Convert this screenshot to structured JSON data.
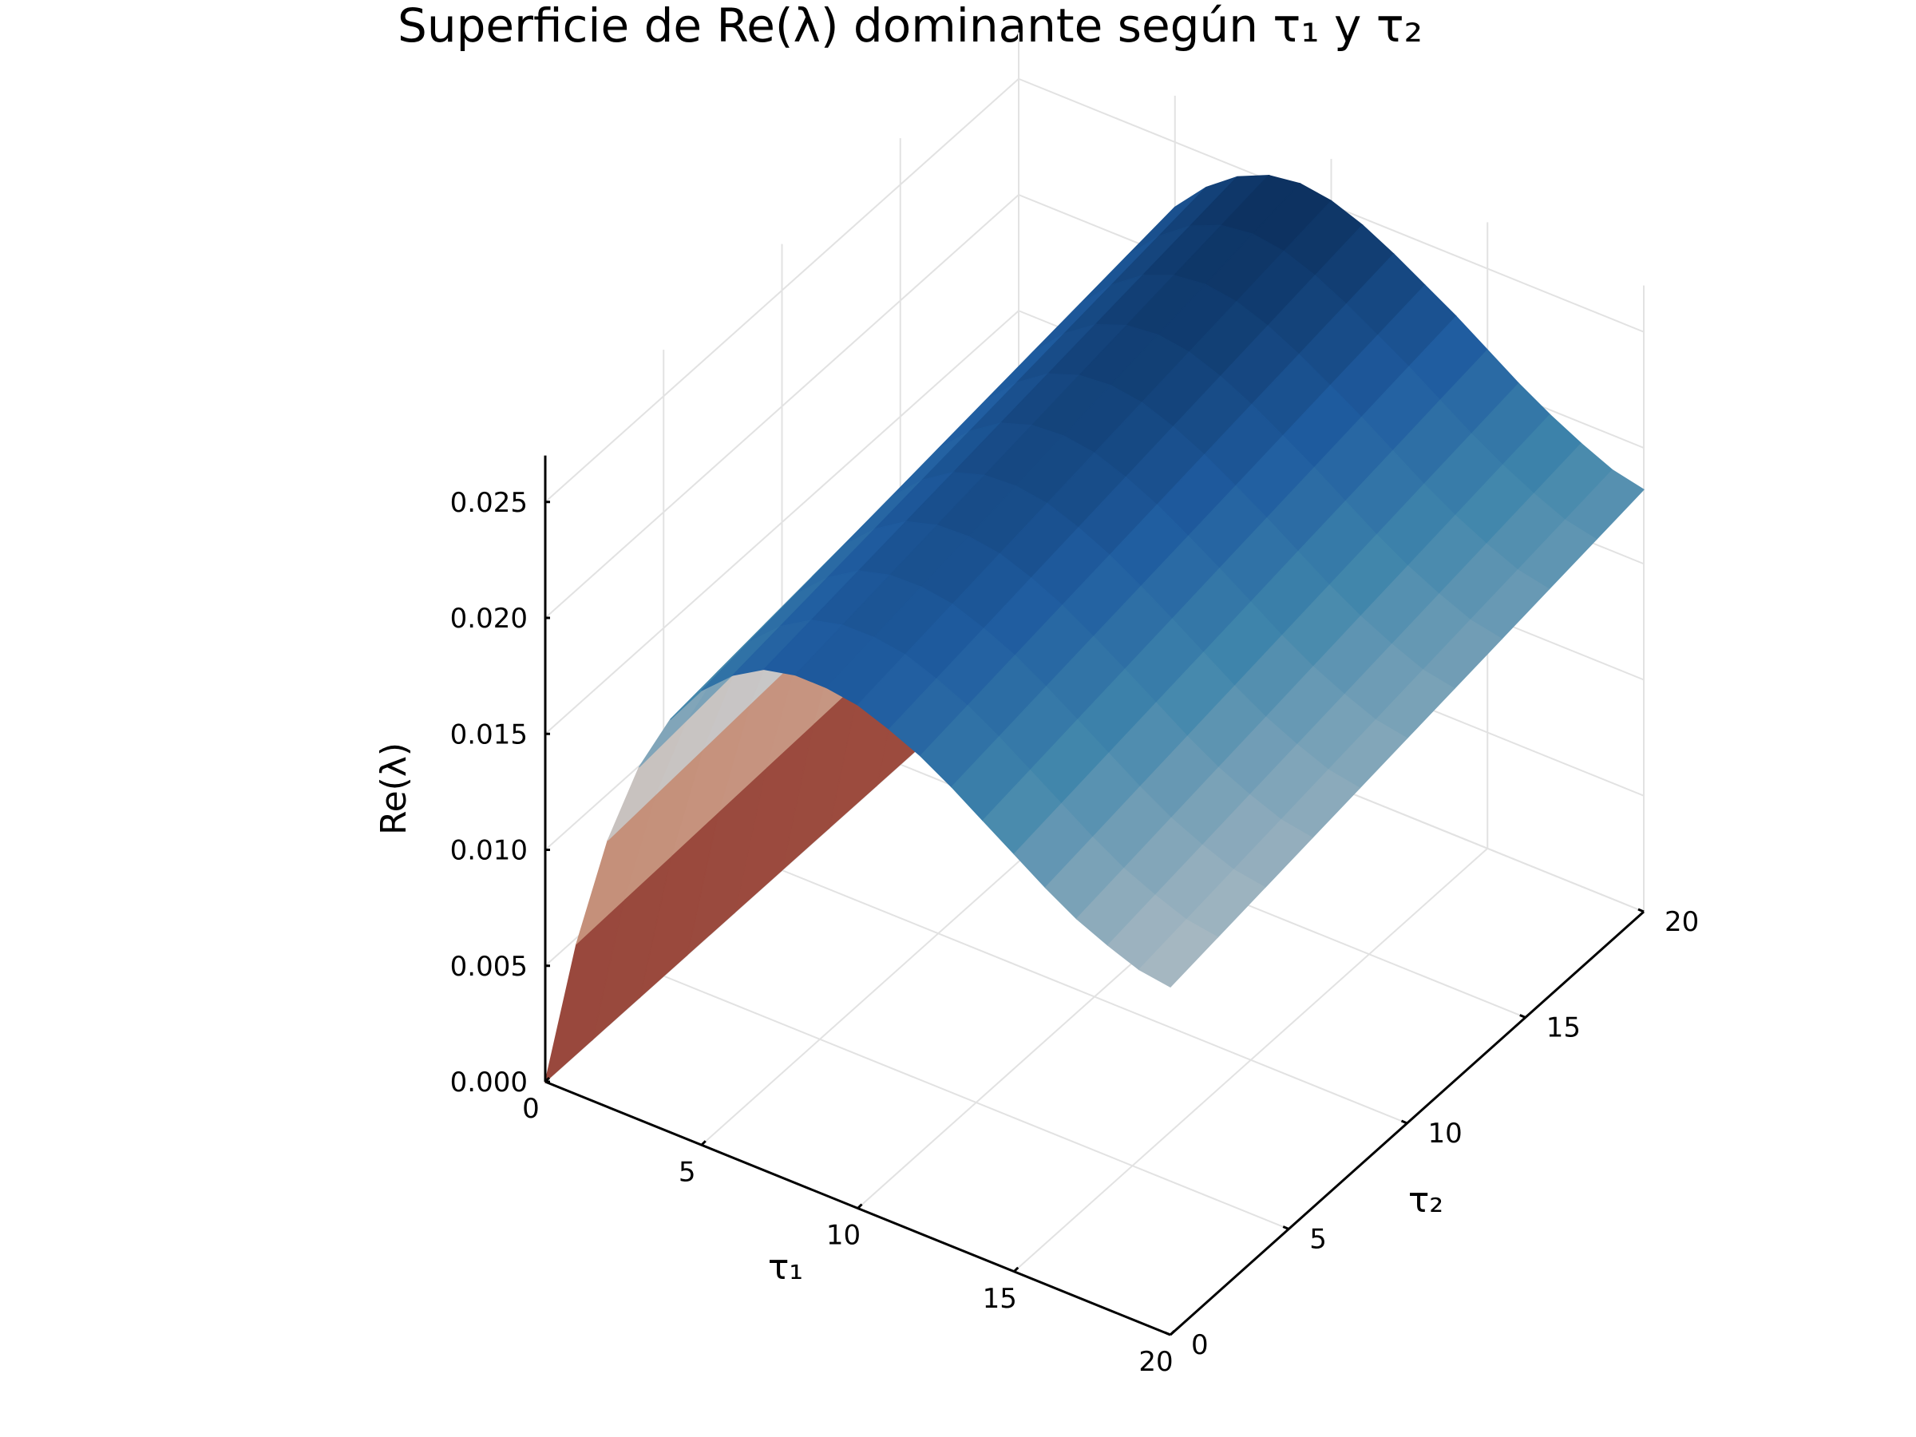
{
  "chart_data": {
    "type": "surface",
    "title": "Superficie de Re(λ) dominante según τ₁ y τ₂",
    "xlabel": "τ₁",
    "ylabel": "τ₂",
    "zlabel": "Re(λ)",
    "xlim": [
      0,
      20
    ],
    "ylim": [
      0,
      20
    ],
    "zlim": [
      0,
      0.027
    ],
    "x_ticks": [
      "0",
      "5",
      "10",
      "15",
      "20"
    ],
    "y_ticks": [
      "0",
      "5",
      "10",
      "15",
      "20"
    ],
    "z_ticks": [
      "0.000",
      "0.005",
      "0.010",
      "0.015",
      "0.020",
      "0.025"
    ],
    "x_tick_values": [
      0,
      5,
      10,
      15,
      20
    ],
    "y_tick_values": [
      0,
      5,
      10,
      15,
      20
    ],
    "z_tick_values": [
      0,
      0.005,
      0.01,
      0.015,
      0.02,
      0.025
    ],
    "grid": true,
    "colormap": [
      "#6b1d2a",
      "#c4714f",
      "#c8c8c8",
      "#3f85ab",
      "#1f5ca0",
      "#0b2f5c"
    ],
    "tau1": [
      0,
      1,
      2,
      3,
      4,
      5,
      6,
      7,
      8,
      9,
      10,
      11,
      12,
      13,
      14,
      15,
      16,
      17,
      18,
      19,
      20
    ],
    "tau2": [
      0,
      20
    ],
    "Re_lambda": [
      [
        0.0,
        0.0
      ],
      [
        0.0065,
        0.0072
      ],
      [
        0.0115,
        0.0128
      ],
      [
        0.0152,
        0.0171
      ],
      [
        0.0178,
        0.0201
      ],
      [
        0.0196,
        0.0222
      ],
      [
        0.0208,
        0.0236
      ],
      [
        0.0216,
        0.0246
      ],
      [
        0.0219,
        0.0252
      ],
      [
        0.0219,
        0.0254
      ],
      [
        0.0217,
        0.0252
      ],
      [
        0.0212,
        0.0247
      ],
      [
        0.0206,
        0.024
      ],
      [
        0.0198,
        0.0232
      ],
      [
        0.0189,
        0.0224
      ],
      [
        0.018,
        0.0215
      ],
      [
        0.0171,
        0.0206
      ],
      [
        0.0163,
        0.0198
      ],
      [
        0.0157,
        0.0191
      ],
      [
        0.0152,
        0.0185
      ],
      [
        0.015,
        0.0182
      ]
    ]
  }
}
